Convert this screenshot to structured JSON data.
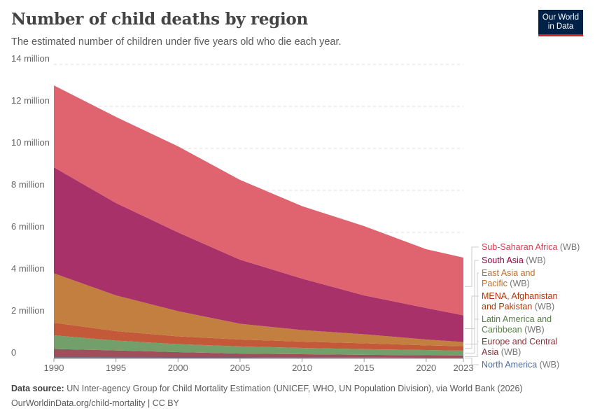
{
  "header": {
    "title": "Number of child deaths by region",
    "subtitle": "The estimated number of children under five years old who die each year.",
    "logo": "Our World in Data"
  },
  "footer": {
    "source_label": "Data source:",
    "source": "UN Inter-agency Group for Child Mortality Estimation (UNICEF, WHO, UN Population Division), via World Bank (2026)",
    "url": "OurWorldinData.org/child-mortality | CC BY"
  },
  "chart_data": {
    "type": "area",
    "stacked": true,
    "title": "Number of child deaths by region",
    "subtitle": "The estimated number of children under five years old who die each year.",
    "x": [
      1990,
      1995,
      2000,
      2005,
      2010,
      2015,
      2020,
      2023
    ],
    "xticks": [
      "1990",
      "1995",
      "2000",
      "2005",
      "2010",
      "2015",
      "2020",
      "2023"
    ],
    "yticks": [
      "0",
      "2 million",
      "4 million",
      "6 million",
      "8 million",
      "10 million",
      "12 million",
      "14 million"
    ],
    "ylim": [
      0,
      14000000
    ],
    "grid": "horizontal dashed",
    "legend": "right",
    "series": [
      {
        "name": "North America",
        "suffix": "(WB)",
        "color": "#4c6a9c",
        "label_color": "#4c6a9c",
        "values": [
          60000,
          55000,
          50000,
          50000,
          45000,
          40000,
          35000,
          35000
        ]
      },
      {
        "name": "Europe and Central Asia",
        "suffix": "(WB)",
        "color": "#9e4f5c",
        "label_color": "#883039",
        "values": [
          390000,
          325000,
          250000,
          180000,
          155000,
          130000,
          115000,
          105000
        ]
      },
      {
        "name": "Latin America and Caribbean",
        "suffix": "(WB)",
        "color": "#73a06a",
        "label_color": "#578145",
        "values": [
          650000,
          470000,
          380000,
          340000,
          300000,
          270000,
          250000,
          230000
        ]
      },
      {
        "name": "MENA, Afghanistan and Pakistan",
        "suffix": "(WB)",
        "color": "#c4593a",
        "label_color": "#b13507",
        "values": [
          600000,
          450000,
          370000,
          330000,
          300000,
          280000,
          220000,
          210000
        ]
      },
      {
        "name": "East Asia and Pacific",
        "suffix": "(WB)",
        "color": "#c27f40",
        "label_color": "#bd6e2a",
        "values": [
          2350000,
          1700000,
          1200000,
          750000,
          550000,
          430000,
          280000,
          200000
        ]
      },
      {
        "name": "South Asia",
        "suffix": "(WB)",
        "color": "#a9316a",
        "label_color": "#970046",
        "values": [
          5050000,
          4400000,
          3750000,
          3050000,
          2450000,
          1850000,
          1500000,
          1270000
        ]
      },
      {
        "name": "Sub-Saharan Africa",
        "suffix": "(WB)",
        "color": "#e0646f",
        "label_color": "#d73c50",
        "values": [
          3900000,
          4100000,
          4100000,
          3800000,
          3450000,
          3300000,
          2800000,
          2750000
        ]
      }
    ]
  }
}
